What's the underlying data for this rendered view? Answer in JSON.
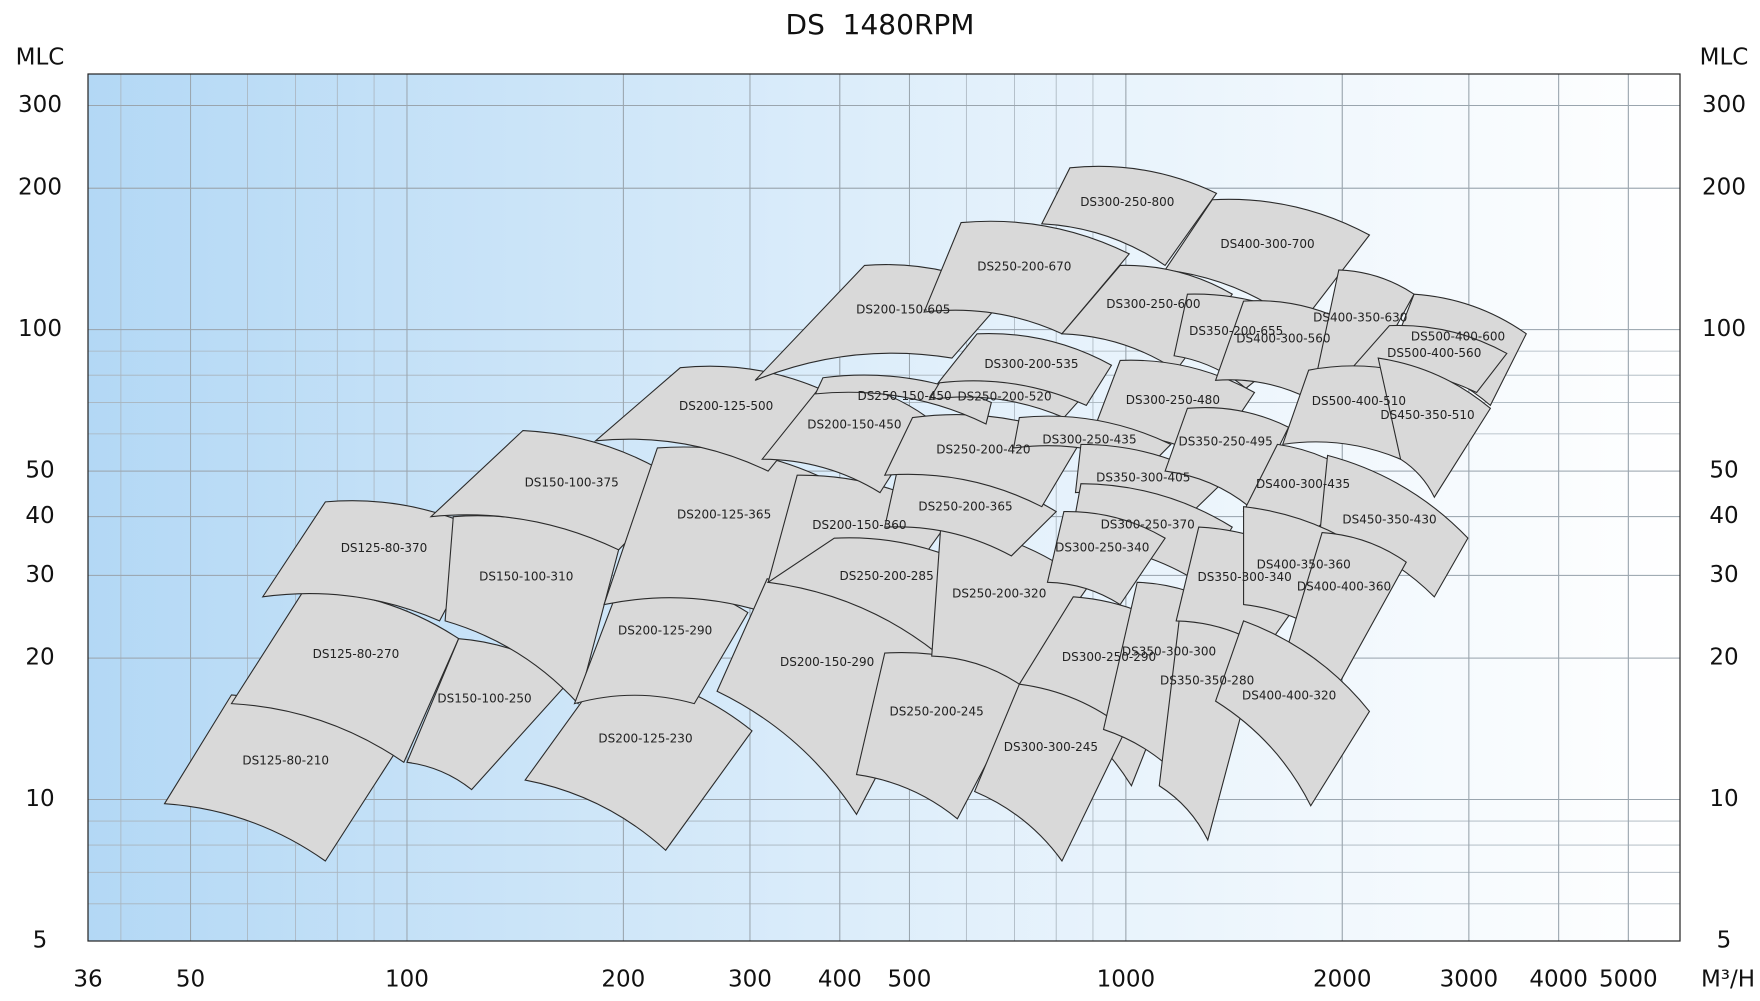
{
  "chart_data": {
    "type": "region",
    "title": "DS  1480RPM",
    "y_label": "MLC",
    "y2_label": "MLC",
    "x_label": "M³/H",
    "log_x": true,
    "log_y": true,
    "grid": true,
    "xlim": [
      36,
      5900
    ],
    "ylim": [
      5,
      350
    ],
    "xticks": [
      36,
      50,
      100,
      200,
      300,
      400,
      500,
      1000,
      2000,
      3000,
      4000,
      5000
    ],
    "yticks": [
      5,
      10,
      20,
      30,
      40,
      50,
      100,
      200,
      300
    ],
    "color": "#d9d9d9",
    "regions": [
      {
        "name": "DS125-80-210",
        "points": [
          [
            57,
            16.7
          ],
          [
            96,
            12.5
          ],
          [
            77,
            7.4
          ],
          [
            46,
            9.8
          ]
        ]
      },
      {
        "name": "DS125-80-270",
        "points": [
          [
            72,
            28
          ],
          [
            118,
            22
          ],
          [
            99,
            12
          ],
          [
            57,
            16
          ]
        ]
      },
      {
        "name": "DS125-80-370",
        "points": [
          [
            77,
            43
          ],
          [
            129,
            37
          ],
          [
            111,
            24
          ],
          [
            63,
            27
          ]
        ]
      },
      {
        "name": "DS150-100-250",
        "points": [
          [
            118,
            22
          ],
          [
            169,
            18
          ],
          [
            123,
            10.5
          ],
          [
            100,
            12
          ]
        ]
      },
      {
        "name": "DS150-100-310",
        "points": [
          [
            116,
            40
          ],
          [
            197,
            34
          ],
          [
            173,
            16
          ],
          [
            113,
            24
          ]
        ]
      },
      {
        "name": "DS150-100-375",
        "points": [
          [
            145,
            61
          ],
          [
            242,
            47
          ],
          [
            197,
            34
          ],
          [
            108,
            40
          ]
        ]
      },
      {
        "name": "DS200-125-230",
        "points": [
          [
            189,
            19
          ],
          [
            302,
            14
          ],
          [
            229,
            7.8
          ],
          [
            146,
            11
          ]
        ]
      },
      {
        "name": "DS200-125-290",
        "points": [
          [
            200,
            30
          ],
          [
            298,
            25
          ],
          [
            251,
            16
          ],
          [
            171,
            16
          ]
        ]
      },
      {
        "name": "DS200-125-365",
        "points": [
          [
            223,
            56
          ],
          [
            394,
            47
          ],
          [
            328,
            24.5
          ],
          [
            188,
            26
          ]
        ]
      },
      {
        "name": "DS200-125-500",
        "points": [
          [
            240,
            83
          ],
          [
            389,
            73
          ],
          [
            318,
            50
          ],
          [
            183,
            58
          ]
        ]
      },
      {
        "name": "DS200-150-290",
        "points": [
          [
            317,
            29.5
          ],
          [
            553,
            20.5
          ],
          [
            422,
            9.3
          ],
          [
            270,
            17
          ]
        ]
      },
      {
        "name": "DS200-150-360",
        "points": [
          [
            349,
            49
          ],
          [
            573,
            40
          ],
          [
            493,
            29
          ],
          [
            318,
            29
          ]
        ]
      },
      {
        "name": "DS200-150-450",
        "points": [
          [
            382,
            78
          ],
          [
            530,
            65
          ],
          [
            455,
            45
          ],
          [
            312,
            53
          ]
        ]
      },
      {
        "name": "DS200-150-605",
        "points": [
          [
            433,
            137
          ],
          [
            686,
            119
          ],
          [
            573,
            87
          ],
          [
            305,
            78
          ]
        ]
      },
      {
        "name": "DS250-200-245",
        "points": [
          [
            462,
            20.5
          ],
          [
            731,
            17.6
          ],
          [
            583,
            9.1
          ],
          [
            422,
            11.3
          ]
        ]
      },
      {
        "name": "DS250-200-285",
        "points": [
          [
            393,
            36
          ],
          [
            634,
            30.5
          ],
          [
            548,
            20.4
          ],
          [
            318,
            29
          ]
        ]
      },
      {
        "name": "DS250-200-320",
        "points": [
          [
            553,
            38.5
          ],
          [
            889,
            28.6
          ],
          [
            711,
            17.6
          ],
          [
            537,
            20.2
          ]
        ]
      },
      {
        "name": "DS250-200-365",
        "points": [
          [
            482,
            51
          ],
          [
            800,
            41
          ],
          [
            693,
            33
          ],
          [
            462,
            38
          ]
        ]
      },
      {
        "name": "DS250-200-420",
        "points": [
          [
            505,
            65
          ],
          [
            866,
            58
          ],
          [
            764,
            42
          ],
          [
            462,
            49
          ]
        ]
      },
      {
        "name": "DS250-150-450",
        "points": [
          [
            379,
            79
          ],
          [
            650,
            70
          ],
          [
            639,
            63
          ],
          [
            370,
            73
          ]
        ]
      },
      {
        "name": "DS250-200-520",
        "points": [
          [
            553,
            78
          ],
          [
            860,
            70.5
          ],
          [
            820,
            65
          ],
          [
            533,
            71
          ]
        ]
      },
      {
        "name": "DS250-200-670",
        "points": [
          [
            590,
            169
          ],
          [
            1011,
            145
          ],
          [
            815,
            98
          ],
          [
            524,
            109
          ]
        ]
      },
      {
        "name": "DS300-200-535",
        "points": [
          [
            621,
            98
          ],
          [
            955,
            84
          ],
          [
            881,
            69
          ],
          [
            548,
            77
          ]
        ]
      },
      {
        "name": "DS300-250-800",
        "points": [
          [
            836,
            221
          ],
          [
            1337,
            195
          ],
          [
            1134,
            137
          ],
          [
            764,
            168
          ]
        ]
      },
      {
        "name": "DS400-300-700",
        "points": [
          [
            1319,
            189
          ],
          [
            2182,
            159
          ],
          [
            1746,
            102
          ],
          [
            1134,
            134
          ]
        ]
      },
      {
        "name": "DS300-250-600",
        "points": [
          [
            982,
            137
          ],
          [
            1406,
            119
          ],
          [
            1175,
            82
          ],
          [
            815,
            98
          ]
        ]
      },
      {
        "name": "DS350-200-655",
        "points": [
          [
            1218,
            119
          ],
          [
            1862,
            101
          ],
          [
            1469,
            75
          ],
          [
            1167,
            88
          ]
        ]
      },
      {
        "name": "DS300-250-480",
        "points": [
          [
            982,
            86
          ],
          [
            1510,
            73.5
          ],
          [
            1309,
            53
          ],
          [
            898,
            60
          ]
        ]
      },
      {
        "name": "DS300-250-435",
        "points": [
          [
            711,
            65
          ],
          [
            1155,
            57
          ],
          [
            1075,
            51
          ],
          [
            698,
            56
          ]
        ]
      },
      {
        "name": "DS350-300-405",
        "points": [
          [
            866,
            57
          ],
          [
            1358,
            47
          ],
          [
            1218,
            40
          ],
          [
            851,
            45
          ]
        ]
      },
      {
        "name": "DS300-250-370",
        "points": [
          [
            866,
            47
          ],
          [
            1406,
            38
          ],
          [
            1263,
            29
          ],
          [
            836,
            35
          ]
        ]
      },
      {
        "name": "DS300-250-340",
        "points": [
          [
            820,
            41
          ],
          [
            1134,
            36
          ],
          [
            982,
            26
          ],
          [
            778,
            29
          ]
        ]
      },
      {
        "name": "DS300-250-290",
        "points": [
          [
            845,
            27
          ],
          [
            1227,
            22
          ],
          [
            1018,
            10.7
          ],
          [
            711,
            17.6
          ]
        ]
      },
      {
        "name": "DS300-300-245",
        "points": [
          [
            711,
            17.6
          ],
          [
            1000,
            14.1
          ],
          [
            815,
            7.4
          ],
          [
            616,
            10.4
          ]
        ]
      },
      {
        "name": "DS350-300-300",
        "points": [
          [
            1037,
            29
          ],
          [
            1406,
            25
          ],
          [
            1218,
            10.7
          ],
          [
            931,
            14.1
          ]
        ]
      },
      {
        "name": "DS350-350-280",
        "points": [
          [
            1197,
            27
          ],
          [
            1555,
            23
          ],
          [
            1300,
            8.2
          ],
          [
            1113,
            10.7
          ]
        ]
      },
      {
        "name": "DS350-250-495",
        "points": [
          [
            1218,
            68
          ],
          [
            1684,
            62
          ],
          [
            1485,
            42
          ],
          [
            1134,
            50
          ]
        ]
      },
      {
        "name": "DS350-300-340",
        "points": [
          [
            1263,
            38
          ],
          [
            1875,
            31
          ],
          [
            1566,
            21
          ],
          [
            1175,
            24
          ]
        ]
      },
      {
        "name": "DS400-300-560",
        "points": [
          [
            1458,
            115
          ],
          [
            2051,
            103
          ],
          [
            1808,
            71
          ],
          [
            1333,
            78
          ]
        ]
      },
      {
        "name": "DS400-350-630",
        "points": [
          [
            1978,
            134
          ],
          [
            2517,
            119
          ],
          [
            2089,
            71
          ],
          [
            1841,
            80
          ]
        ]
      },
      {
        "name": "DS500-400-600",
        "points": [
          [
            2517,
            119
          ],
          [
            3606,
            98
          ],
          [
            3214,
            69
          ],
          [
            2326,
            87
          ]
        ]
      },
      {
        "name": "DS500-400-560",
        "points": [
          [
            2326,
            102
          ],
          [
            3388,
            89
          ],
          [
            3076,
            73.5
          ],
          [
            2051,
            82
          ]
        ]
      },
      {
        "name": "DS500-400-510",
        "points": [
          [
            1796,
            82
          ],
          [
            2666,
            78
          ],
          [
            2411,
            53
          ],
          [
            1653,
            57
          ]
        ]
      },
      {
        "name": "DS450-350-510",
        "points": [
          [
            2244,
            87
          ],
          [
            3214,
            68
          ],
          [
            2686,
            44
          ],
          [
            2411,
            53
          ]
        ]
      },
      {
        "name": "DS400-300-435",
        "points": [
          [
            1625,
            57
          ],
          [
            2163,
            47
          ],
          [
            1778,
            36
          ],
          [
            1458,
            41
          ]
        ]
      },
      {
        "name": "DS450-350-430",
        "points": [
          [
            1908,
            54
          ],
          [
            2991,
            36
          ],
          [
            2686,
            27
          ],
          [
            1862,
            37
          ]
        ]
      },
      {
        "name": "DS400-350-360",
        "points": [
          [
            1458,
            42
          ],
          [
            2261,
            32
          ],
          [
            1978,
            21.5
          ],
          [
            1458,
            26
          ]
        ]
      },
      {
        "name": "DS400-400-360",
        "points": [
          [
            1875,
            37
          ],
          [
            2455,
            32
          ],
          [
            1978,
            17.6
          ],
          [
            1684,
            21.5
          ]
        ]
      },
      {
        "name": "DS400-400-320",
        "points": [
          [
            1458,
            24
          ],
          [
            2182,
            15.4
          ],
          [
            1808,
            9.7
          ],
          [
            1333,
            16.2
          ]
        ]
      }
    ]
  }
}
